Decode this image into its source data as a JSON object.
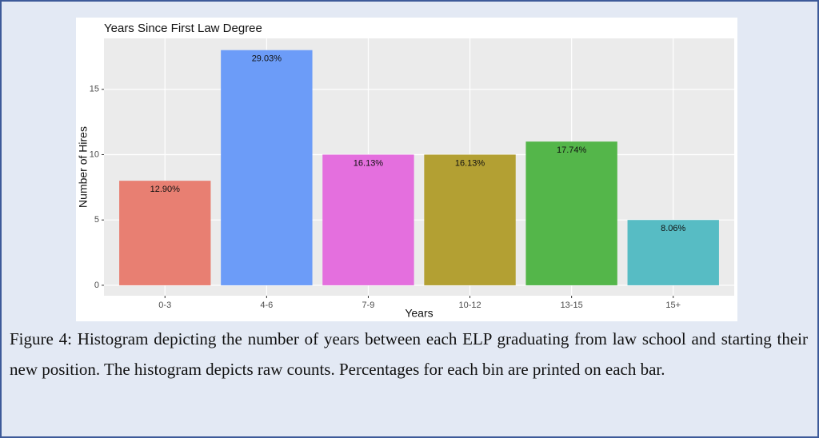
{
  "chart_data": {
    "type": "bar",
    "title": "Years Since First Law Degree",
    "x_label": "Years",
    "y_label": "Number of Hires",
    "categories": [
      "0-3",
      "4-6",
      "7-9",
      "10-12",
      "13-15",
      "15+"
    ],
    "values": [
      8,
      18,
      10,
      10,
      11,
      5
    ],
    "bar_labels": [
      "12.90%",
      "29.03%",
      "16.13%",
      "16.13%",
      "17.74%",
      "8.06%"
    ],
    "colors": [
      "#e87f72",
      "#6c9cf8",
      "#e46fde",
      "#b3a033",
      "#54b64a",
      "#57bcc4"
    ],
    "ylim": [
      -0.8,
      18.9
    ],
    "yticks": [
      0,
      5,
      10,
      15
    ],
    "grid": true
  },
  "caption": "Figure 4: Histogram depicting the number of years between each ELP graduating from law school and starting their new position. The histogram depicts raw counts. Percentages for each bin are printed on each bar."
}
